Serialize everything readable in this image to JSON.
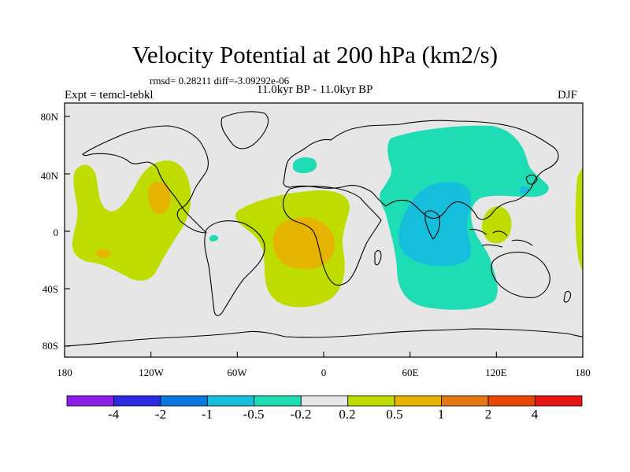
{
  "map": {
    "title": "Velocity Potential at 200 hPa (km2/s)",
    "stats": "rmsd= 0.28211 diff=-3.09292e-06",
    "period": "11.0kyr BP - 11.0kyr BP",
    "experiment": "Expt = temcl-tebkl",
    "season": "DJF",
    "lat_ticks": [
      {
        "value": 80,
        "label": "80N"
      },
      {
        "value": 40,
        "label": "40N"
      },
      {
        "value": 0,
        "label": "0"
      },
      {
        "value": -40,
        "label": "40S"
      },
      {
        "value": -80,
        "label": "80S"
      }
    ],
    "lon_ticks": [
      {
        "value": -180,
        "label": "180"
      },
      {
        "value": -120,
        "label": "120W"
      },
      {
        "value": -60,
        "label": "60W"
      },
      {
        "value": 0,
        "label": "0"
      },
      {
        "value": 60,
        "label": "60E"
      },
      {
        "value": 120,
        "label": "120E"
      },
      {
        "value": 180,
        "label": "180"
      }
    ],
    "background_color": "#e6e6e6",
    "coastline_color": "#000000"
  },
  "colorbar": {
    "colors": [
      "#8b1ee8",
      "#2a2ae0",
      "#0a78e0",
      "#14bedc",
      "#1edcb4",
      "#e6e6e6",
      "#bedc00",
      "#e6b400",
      "#e67814",
      "#e64600",
      "#e61414"
    ],
    "labels": [
      "-4",
      "-2",
      "-1",
      "-0.5",
      "-0.2",
      "0.2",
      "0.5",
      "1",
      "2",
      "4"
    ]
  }
}
